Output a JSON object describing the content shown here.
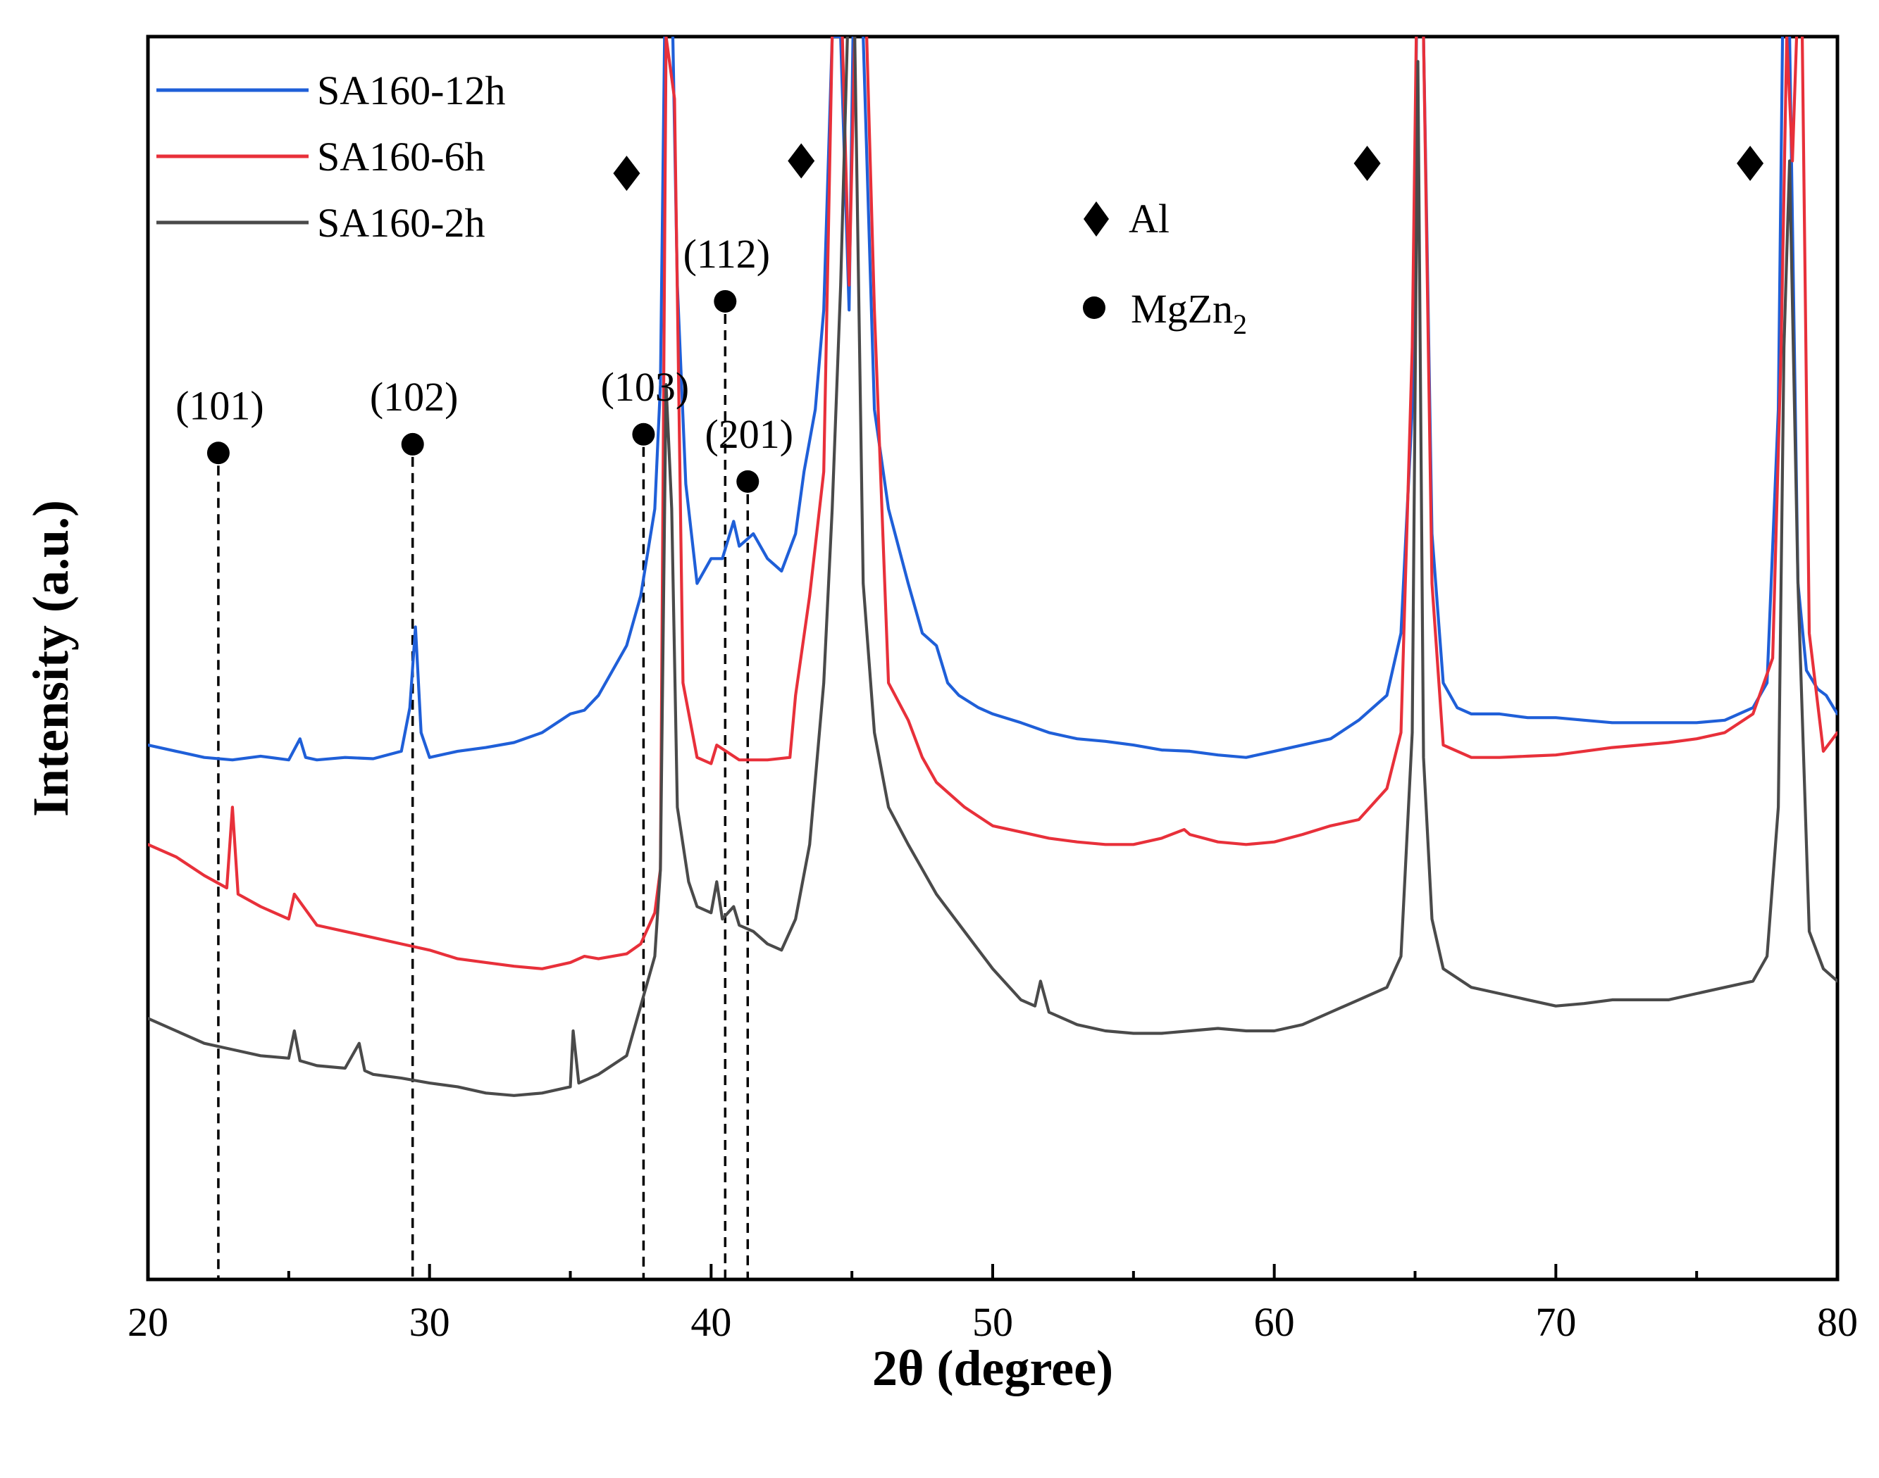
{
  "chart_data": {
    "type": "line",
    "title": "",
    "xlabel": "2θ (degree)",
    "ylabel": "Intensity (a.u.)",
    "xlim": [
      20,
      80
    ],
    "ylim": [
      0,
      1000
    ],
    "xticks": [
      20,
      30,
      40,
      50,
      60,
      70,
      80
    ],
    "xtick_labels": [
      "20",
      "30",
      "40",
      "50",
      "60",
      "70",
      "80"
    ],
    "yticks_visible": false,
    "legend": {
      "position": "top-left",
      "entries": [
        {
          "name": "SA160-12h",
          "color": "#1f5fd8"
        },
        {
          "name": "SA160-6h",
          "color": "#e8303a"
        },
        {
          "name": "SA160-2h",
          "color": "#4a4a4a"
        }
      ]
    },
    "series": [
      {
        "name": "SA160-12h",
        "color": "#1f5fd8",
        "x": [
          20,
          21,
          22,
          23,
          24,
          25,
          25.4,
          25.6,
          26,
          27,
          28,
          29,
          29.3,
          29.5,
          29.7,
          30,
          31,
          32,
          33,
          34,
          35,
          35.5,
          36,
          36.5,
          37,
          37.5,
          38,
          38.2,
          38.4,
          38.6,
          38.8,
          39.1,
          39.5,
          40,
          40.4,
          40.8,
          41,
          41.5,
          42,
          42.5,
          43,
          43.3,
          43.7,
          44,
          44.3,
          44.6,
          44.9,
          45.1,
          45.4,
          45.8,
          46.3,
          47,
          47.5,
          48,
          48.4,
          48.8,
          49.5,
          50,
          51,
          52,
          53,
          54,
          55,
          56,
          57,
          58,
          59,
          60,
          61,
          62,
          63,
          64,
          64.5,
          64.9,
          65.1,
          65.3,
          65.6,
          66,
          66.5,
          67,
          68,
          69,
          70,
          71,
          72,
          73,
          74,
          75,
          76,
          77,
          77.5,
          77.9,
          78.1,
          78.3,
          78.6,
          78.9,
          79.3,
          79.6,
          80
        ],
        "y": [
          430,
          425,
          420,
          418,
          421,
          418,
          435,
          420,
          418,
          420,
          419,
          425,
          460,
          525,
          440,
          420,
          425,
          428,
          432,
          440,
          455,
          458,
          470,
          490,
          510,
          550,
          620,
          720,
          1100,
          1050,
          800,
          640,
          560,
          580,
          580,
          610,
          590,
          600,
          580,
          570,
          600,
          650,
          700,
          780,
          1000,
          1000,
          780,
          1100,
          1000,
          700,
          620,
          560,
          520,
          510,
          480,
          470,
          460,
          455,
          448,
          440,
          435,
          433,
          430,
          426,
          425,
          422,
          420,
          425,
          430,
          435,
          450,
          470,
          520,
          700,
          1100,
          1000,
          600,
          480,
          460,
          455,
          455,
          452,
          452,
          450,
          448,
          448,
          448,
          448,
          450,
          460,
          480,
          700,
          1100,
          1000,
          560,
          490,
          475,
          470,
          455
        ]
      },
      {
        "name": "SA160-6h",
        "color": "#e8303a",
        "x": [
          20,
          21,
          22,
          22.8,
          23,
          23.2,
          24,
          25,
          25.2,
          26,
          27,
          28,
          29,
          30,
          31,
          32,
          33,
          34,
          35,
          35.5,
          36,
          37,
          37.5,
          38,
          38.2,
          38.4,
          38.7,
          39,
          39.5,
          40,
          40.2,
          41,
          42,
          42.8,
          43,
          43.5,
          44,
          44.3,
          44.6,
          44.9,
          45.1,
          45.4,
          45.8,
          46.3,
          47,
          47.5,
          48,
          49,
          50,
          51,
          52,
          53,
          54,
          55,
          56,
          56.8,
          57,
          58,
          59,
          60,
          61,
          62,
          63,
          64,
          64.5,
          64.9,
          65.1,
          65.3,
          65.6,
          66,
          67,
          68,
          69,
          70,
          71,
          72,
          73,
          74,
          75,
          76,
          77,
          77.7,
          78,
          78.2,
          78.4,
          78.7,
          79,
          79.5,
          80
        ],
        "y": [
          350,
          340,
          325,
          315,
          380,
          310,
          300,
          290,
          310,
          285,
          280,
          275,
          270,
          265,
          258,
          255,
          252,
          250,
          255,
          260,
          258,
          262,
          270,
          295,
          330,
          1000,
          950,
          480,
          420,
          415,
          430,
          418,
          418,
          420,
          470,
          550,
          650,
          1000,
          1050,
          800,
          1000,
          1100,
          780,
          480,
          450,
          420,
          400,
          380,
          365,
          360,
          355,
          352,
          350,
          350,
          355,
          362,
          358,
          352,
          350,
          352,
          358,
          365,
          370,
          395,
          440,
          750,
          1100,
          1000,
          560,
          430,
          420,
          420,
          421,
          422,
          425,
          428,
          430,
          432,
          435,
          440,
          455,
          500,
          750,
          1000,
          900,
          1100,
          520,
          425,
          440
        ]
      },
      {
        "name": "SA160-2h",
        "color": "#4a4a4a",
        "x": [
          20,
          21,
          22,
          23,
          24,
          25,
          25.2,
          25.4,
          26,
          27,
          27.5,
          27.7,
          28,
          29,
          30,
          31,
          32,
          33,
          34,
          35,
          35.1,
          35.3,
          36,
          37,
          37.5,
          38,
          38.2,
          38.4,
          38.6,
          38.8,
          39.2,
          39.5,
          40,
          40.2,
          40.4,
          40.8,
          41,
          41.5,
          42,
          42.5,
          43,
          43.5,
          44,
          44.3,
          44.6,
          44.9,
          45.1,
          45.4,
          45.8,
          46.3,
          47,
          47.5,
          48,
          49,
          50,
          51,
          51.5,
          51.7,
          52,
          53,
          54,
          55,
          56,
          57,
          58,
          59,
          60,
          61,
          62,
          63,
          64,
          64.5,
          64.9,
          65.1,
          65.3,
          65.6,
          66,
          67,
          68,
          69,
          70,
          71,
          72,
          73,
          74,
          75,
          76,
          77,
          77.5,
          77.9,
          78.1,
          78.3,
          78.6,
          79,
          79.5,
          80
        ],
        "y": [
          210,
          200,
          190,
          185,
          180,
          178,
          200,
          176,
          172,
          170,
          190,
          168,
          165,
          162,
          158,
          155,
          150,
          148,
          150,
          155,
          200,
          158,
          165,
          180,
          220,
          260,
          330,
          720,
          620,
          380,
          320,
          300,
          295,
          320,
          290,
          300,
          285,
          280,
          270,
          265,
          290,
          350,
          480,
          620,
          800,
          1050,
          1000,
          560,
          440,
          380,
          350,
          330,
          310,
          280,
          250,
          225,
          220,
          240,
          215,
          205,
          200,
          198,
          198,
          200,
          202,
          200,
          200,
          205,
          215,
          225,
          235,
          260,
          440,
          980,
          420,
          290,
          250,
          235,
          230,
          225,
          220,
          222,
          225,
          225,
          225,
          230,
          235,
          240,
          260,
          380,
          750,
          900,
          560,
          280,
          250,
          240
        ]
      }
    ],
    "annotations": {
      "al_markers": [
        {
          "x": 37.0,
          "y": 890
        },
        {
          "x": 43.2,
          "y": 900
        },
        {
          "x": 63.3,
          "y": 898
        },
        {
          "x": 76.9,
          "y": 898
        }
      ],
      "mgzn2_markers": [
        {
          "label": "(101)",
          "x": 22.5,
          "y": 665
        },
        {
          "label": "(102)",
          "x": 29.4,
          "y": 672
        },
        {
          "label": "(103)",
          "x": 37.6,
          "y": 680
        },
        {
          "label": "(112)",
          "x": 40.5,
          "y": 787
        },
        {
          "label": "(201)",
          "x": 41.3,
          "y": 642
        }
      ],
      "symbol_legend": [
        {
          "symbol": "diamond",
          "label": "Al"
        },
        {
          "symbol": "circle",
          "label": "MgZn",
          "subscript": "2"
        }
      ]
    }
  }
}
